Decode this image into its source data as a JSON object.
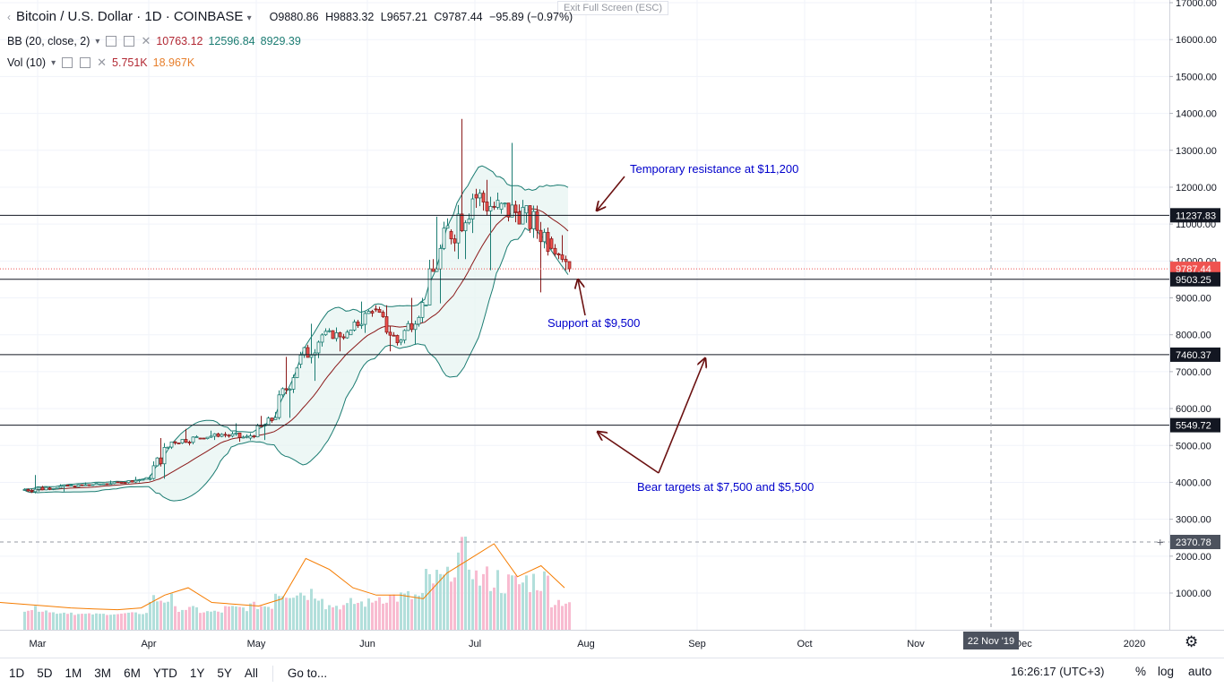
{
  "header": {
    "symbol": "Bitcoin / U.S. Dollar",
    "sep1": "·",
    "timeframe": "1D",
    "sep2": "·",
    "exchange": "COINBASE",
    "open": "O9880.86",
    "high": "H9883.32",
    "low": "L9657.21",
    "close": "C9787.44",
    "change": "−95.89 (−0.97%)",
    "exit_fullscreen": "Exit Full Screen (ESC)"
  },
  "indicators": {
    "bb": {
      "label": "BB (20, close, 2)",
      "middle": "10763.12",
      "upper": "12596.84",
      "lower": "8929.39"
    },
    "vol": {
      "label": "Vol (10)",
      "volume": "5.751K",
      "ma": "18.967K"
    }
  },
  "annotations": {
    "resistance": "Temporary resistance at $11,200",
    "support": "Support at $9,500",
    "bear": "Bear targets at $7,500 and $5,500"
  },
  "price_axis": {
    "ticks": [
      "17000.00",
      "16000.00",
      "15000.00",
      "14000.00",
      "13000.00",
      "12000.00",
      "11000.00",
      "10000.00",
      "9000.00",
      "8000.00",
      "7000.00",
      "6000.00",
      "5000.00",
      "4000.00",
      "3000.00",
      "2000.00",
      "1000.00"
    ],
    "tags": [
      {
        "value": 11237.83,
        "label": "11237.83"
      },
      {
        "value": 9787.44,
        "label": "9787.44",
        "type": "current"
      },
      {
        "value": 9503.25,
        "label": "9503.25"
      },
      {
        "value": 7460.37,
        "label": "7460.37"
      },
      {
        "value": 5549.72,
        "label": "5549.72"
      },
      {
        "value": 2370.78,
        "label": "2370.78",
        "type": "crosshair"
      }
    ]
  },
  "time_axis": {
    "labels": [
      "Mar",
      "Apr",
      "May",
      "Jun",
      "Jul",
      "Aug",
      "Sep",
      "Oct",
      "Nov",
      "Dec",
      "2020"
    ],
    "crosshair_label": "22 Nov '19"
  },
  "bottom_bar": {
    "periods": [
      "1D",
      "5D",
      "1M",
      "3M",
      "6M",
      "YTD",
      "1Y",
      "5Y",
      "All"
    ],
    "goto": "Go to...",
    "clock": "16:26:17 (UTC+3)",
    "percent": "%",
    "log": "log",
    "auto": "auto"
  },
  "colors": {
    "up": "#26a69a",
    "down": "#ef5350",
    "bb_band": "#1b7c72",
    "bb_basis": "#8b1a1a",
    "vol_up": "#b2dfdb",
    "vol_down": "#f8bbd0",
    "vol_ma": "#f57c00",
    "annotation": "#0000cc",
    "arrow": "#6b1111"
  },
  "chart_data": {
    "type": "candlestick",
    "symbol": "Bitcoin / U.S. Dollar",
    "timeframe": "1D",
    "ylim": [
      0,
      17500
    ],
    "support_resistance": [
      11237.83,
      9503.25,
      7460.37,
      5549.72
    ],
    "current_price": 9787.44,
    "candles_weekly_approx": [
      {
        "date": "2019-02-25",
        "open": 3800,
        "high": 4200,
        "low": 3700,
        "close": 3850
      },
      {
        "date": "2019-03-04",
        "open": 3850,
        "high": 3950,
        "low": 3700,
        "close": 3900
      },
      {
        "date": "2019-03-11",
        "open": 3900,
        "high": 4000,
        "low": 3850,
        "close": 3950
      },
      {
        "date": "2019-03-18",
        "open": 3950,
        "high": 4050,
        "low": 3900,
        "close": 4000
      },
      {
        "date": "2019-03-25",
        "open": 4000,
        "high": 4150,
        "low": 3950,
        "close": 4100
      },
      {
        "date": "2019-04-01",
        "open": 4100,
        "high": 5200,
        "low": 4050,
        "close": 5100
      },
      {
        "date": "2019-04-08",
        "open": 5100,
        "high": 5450,
        "low": 4950,
        "close": 5200
      },
      {
        "date": "2019-04-15",
        "open": 5200,
        "high": 5400,
        "low": 5100,
        "close": 5300
      },
      {
        "date": "2019-04-22",
        "open": 5300,
        "high": 5600,
        "low": 5050,
        "close": 5200
      },
      {
        "date": "2019-04-29",
        "open": 5200,
        "high": 5800,
        "low": 5100,
        "close": 5700
      },
      {
        "date": "2019-05-06",
        "open": 5700,
        "high": 7400,
        "low": 5700,
        "close": 7200
      },
      {
        "date": "2019-05-13",
        "open": 7200,
        "high": 8300,
        "low": 6700,
        "close": 8000
      },
      {
        "date": "2019-05-20",
        "open": 8000,
        "high": 8200,
        "low": 7500,
        "close": 8000
      },
      {
        "date": "2019-05-27",
        "open": 8000,
        "high": 8900,
        "low": 8000,
        "close": 8700
      },
      {
        "date": "2019-06-03",
        "open": 8700,
        "high": 8800,
        "low": 7500,
        "close": 7800
      },
      {
        "date": "2019-06-10",
        "open": 7800,
        "high": 9000,
        "low": 7700,
        "close": 8800
      },
      {
        "date": "2019-06-17",
        "open": 8800,
        "high": 11200,
        "low": 8800,
        "close": 10800
      },
      {
        "date": "2019-06-24",
        "open": 10800,
        "high": 13850,
        "low": 10000,
        "close": 11800
      },
      {
        "date": "2019-07-01",
        "open": 11800,
        "high": 12200,
        "low": 9700,
        "close": 11400
      },
      {
        "date": "2019-07-08",
        "open": 11400,
        "high": 13200,
        "low": 11000,
        "close": 11300
      },
      {
        "date": "2019-07-15",
        "open": 11300,
        "high": 11500,
        "low": 9100,
        "close": 10600
      },
      {
        "date": "2019-07-22",
        "open": 10600,
        "high": 10700,
        "low": 9700,
        "close": 9787.44
      }
    ],
    "volume_ma_values_k": [
      600,
      550,
      500,
      450,
      420,
      400,
      450,
      800,
      1000,
      600,
      550,
      500,
      700,
      1800,
      1500,
      1000,
      800,
      800,
      700,
      1400,
      1800,
      2200,
      1300,
      1600,
      1000
    ]
  }
}
